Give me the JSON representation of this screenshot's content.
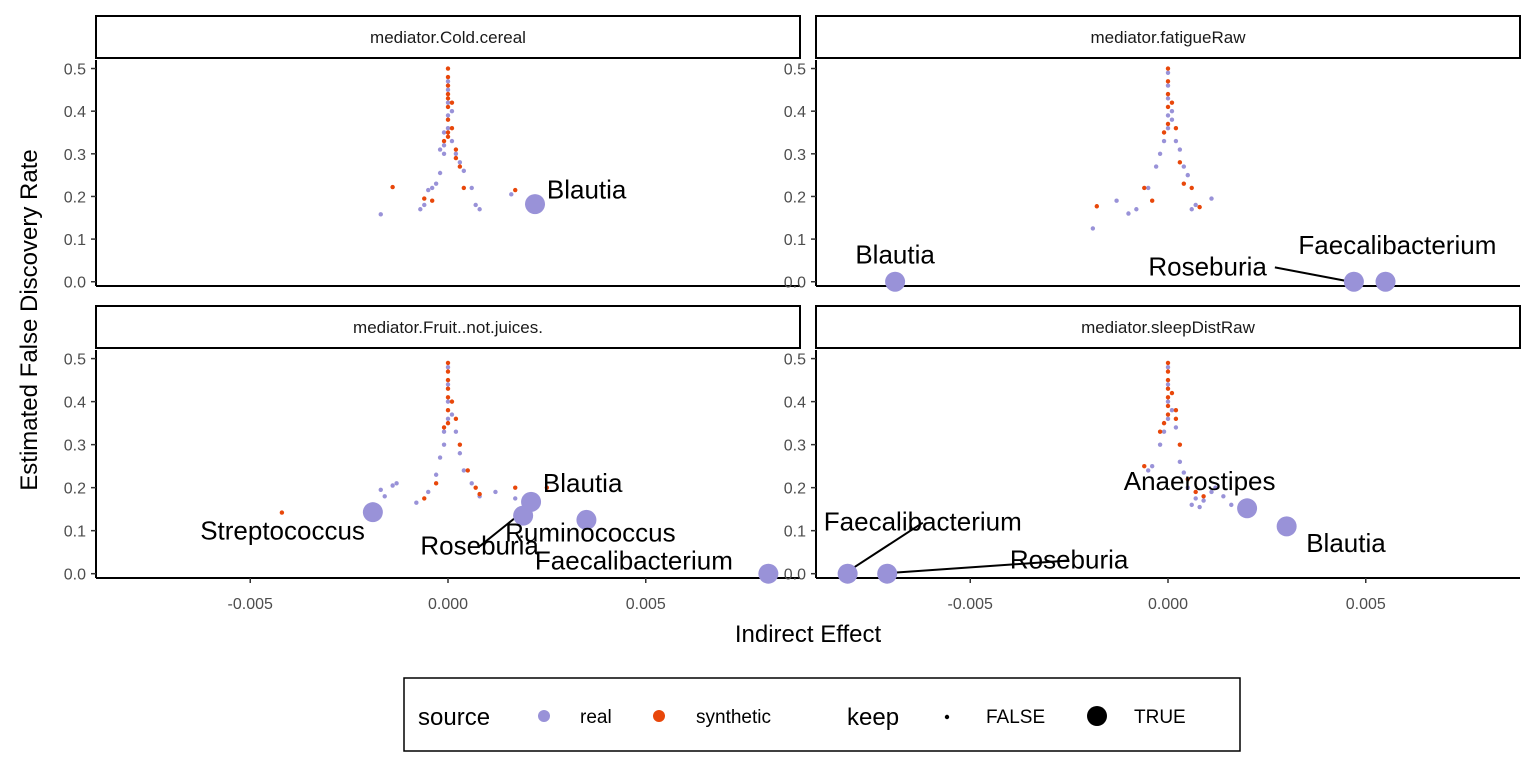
{
  "chart_data": {
    "type": "scatter",
    "xlabel": "Indirect Effect",
    "ylabel": "Estimated False Discovery Rate",
    "xlim": [
      -0.0089,
      0.0089
    ],
    "ylim": [
      -0.01,
      0.52
    ],
    "x_ticks": [
      -0.005,
      0.0,
      0.005
    ],
    "x_tick_labels": [
      "-0.005",
      "0.000",
      "0.005"
    ],
    "y_ticks": [
      0.0,
      0.1,
      0.2,
      0.3,
      0.4,
      0.5
    ],
    "y_tick_labels": [
      "0.0",
      "0.1",
      "0.2",
      "0.3",
      "0.4",
      "0.5"
    ],
    "grid": false,
    "legend_position": "bottom",
    "colors": {
      "real": "#9992D8",
      "synthetic": "#E8470A"
    },
    "legend": {
      "source_title": "source",
      "source_items": [
        "real",
        "synthetic"
      ],
      "keep_title": "keep",
      "keep_items": [
        "FALSE",
        "TRUE"
      ]
    },
    "facets": [
      {
        "title": "mediator.Cold.cereal",
        "real_small": [
          [
            -0.0017,
            0.158
          ],
          [
            -0.0007,
            0.17
          ],
          [
            -0.0006,
            0.18
          ],
          [
            -0.0005,
            0.215
          ],
          [
            -0.0004,
            0.22
          ],
          [
            -0.0003,
            0.23
          ],
          [
            -0.0002,
            0.255
          ],
          [
            -0.0002,
            0.31
          ],
          [
            -0.0001,
            0.3
          ],
          [
            -0.0001,
            0.32
          ],
          [
            -0.0001,
            0.35
          ],
          [
            0.0,
            0.36
          ],
          [
            0.0,
            0.39
          ],
          [
            0.0,
            0.42
          ],
          [
            0.0,
            0.45
          ],
          [
            0.0,
            0.47
          ],
          [
            0.0001,
            0.33
          ],
          [
            0.0001,
            0.4
          ],
          [
            0.0002,
            0.3
          ],
          [
            0.0003,
            0.28
          ],
          [
            0.0004,
            0.26
          ],
          [
            0.0006,
            0.22
          ],
          [
            0.0007,
            0.18
          ],
          [
            0.0008,
            0.17
          ],
          [
            0.0016,
            0.205
          ]
        ],
        "syn_small": [
          [
            -0.0014,
            0.222
          ],
          [
            -0.0006,
            0.195
          ],
          [
            -0.0004,
            0.19
          ],
          [
            -0.0001,
            0.33
          ],
          [
            0.0,
            0.34
          ],
          [
            0.0,
            0.35
          ],
          [
            0.0,
            0.38
          ],
          [
            0.0,
            0.41
          ],
          [
            0.0,
            0.43
          ],
          [
            0.0,
            0.44
          ],
          [
            0.0,
            0.46
          ],
          [
            0.0,
            0.48
          ],
          [
            0.0,
            0.5
          ],
          [
            0.0001,
            0.36
          ],
          [
            0.0001,
            0.42
          ],
          [
            0.0002,
            0.31
          ],
          [
            0.0002,
            0.29
          ],
          [
            0.0003,
            0.27
          ],
          [
            0.0004,
            0.22
          ],
          [
            0.0017,
            0.215
          ]
        ],
        "real_big": [
          [
            0.0022,
            0.182
          ]
        ],
        "syn_big": [],
        "labels": [
          {
            "text": "Blautia",
            "x": 0.0025,
            "y": 0.195,
            "anchor": "start",
            "point": null
          }
        ]
      },
      {
        "title": "mediator.fatigueRaw",
        "real_small": [
          [
            -0.0019,
            0.125
          ],
          [
            -0.0013,
            0.19
          ],
          [
            -0.001,
            0.16
          ],
          [
            -0.0008,
            0.17
          ],
          [
            -0.0005,
            0.22
          ],
          [
            -0.0003,
            0.27
          ],
          [
            -0.0002,
            0.3
          ],
          [
            -0.0001,
            0.33
          ],
          [
            0.0,
            0.36
          ],
          [
            0.0,
            0.39
          ],
          [
            0.0,
            0.43
          ],
          [
            0.0,
            0.46
          ],
          [
            0.0,
            0.49
          ],
          [
            0.0001,
            0.38
          ],
          [
            0.0001,
            0.4
          ],
          [
            0.0002,
            0.33
          ],
          [
            0.0003,
            0.31
          ],
          [
            0.0004,
            0.27
          ],
          [
            0.0005,
            0.25
          ],
          [
            0.0006,
            0.17
          ],
          [
            0.0007,
            0.18
          ],
          [
            0.0011,
            0.195
          ]
        ],
        "syn_small": [
          [
            -0.0018,
            0.177
          ],
          [
            -0.0006,
            0.22
          ],
          [
            -0.0004,
            0.19
          ],
          [
            -0.0001,
            0.35
          ],
          [
            0.0,
            0.37
          ],
          [
            0.0,
            0.41
          ],
          [
            0.0,
            0.44
          ],
          [
            0.0,
            0.47
          ],
          [
            0.0,
            0.5
          ],
          [
            0.0001,
            0.42
          ],
          [
            0.0002,
            0.36
          ],
          [
            0.0003,
            0.28
          ],
          [
            0.0004,
            0.23
          ],
          [
            0.0006,
            0.22
          ],
          [
            0.0008,
            0.175
          ]
        ],
        "real_big": [
          [
            -0.0069,
            0.0
          ],
          [
            0.0047,
            0.0
          ],
          [
            0.0055,
            0.0
          ]
        ],
        "syn_big": [],
        "labels": [
          {
            "text": "Blautia",
            "x": -0.0069,
            "y": 0.043,
            "anchor": "middle",
            "point": null
          },
          {
            "text": "Faecalibacterium",
            "x": 0.0058,
            "y": 0.065,
            "anchor": "middle",
            "point": null
          },
          {
            "text": "Roseburia",
            "x": 0.0025,
            "y": 0.015,
            "anchor": "end",
            "point": [
              0.0045,
              0.002
            ]
          }
        ]
      },
      {
        "title": "mediator.Fruit..not.juices.",
        "real_small": [
          [
            -0.0017,
            0.195
          ],
          [
            -0.0016,
            0.18
          ],
          [
            -0.0014,
            0.205
          ],
          [
            -0.0013,
            0.21
          ],
          [
            -0.0008,
            0.165
          ],
          [
            -0.0005,
            0.19
          ],
          [
            -0.0003,
            0.23
          ],
          [
            -0.0002,
            0.27
          ],
          [
            -0.0001,
            0.3
          ],
          [
            -0.0001,
            0.33
          ],
          [
            0.0,
            0.36
          ],
          [
            0.0,
            0.4
          ],
          [
            0.0,
            0.44
          ],
          [
            0.0,
            0.48
          ],
          [
            0.0001,
            0.37
          ],
          [
            0.0002,
            0.33
          ],
          [
            0.0003,
            0.28
          ],
          [
            0.0004,
            0.24
          ],
          [
            0.0006,
            0.21
          ],
          [
            0.0008,
            0.18
          ],
          [
            0.0012,
            0.19
          ],
          [
            0.0017,
            0.175
          ]
        ],
        "syn_small": [
          [
            -0.0042,
            0.142
          ],
          [
            -0.0006,
            0.175
          ],
          [
            -0.0003,
            0.21
          ],
          [
            -0.0001,
            0.34
          ],
          [
            0.0,
            0.35
          ],
          [
            0.0,
            0.38
          ],
          [
            0.0,
            0.41
          ],
          [
            0.0,
            0.43
          ],
          [
            0.0,
            0.45
          ],
          [
            0.0,
            0.47
          ],
          [
            0.0,
            0.49
          ],
          [
            0.0001,
            0.4
          ],
          [
            0.0002,
            0.36
          ],
          [
            0.0003,
            0.3
          ],
          [
            0.0005,
            0.24
          ],
          [
            0.0007,
            0.2
          ],
          [
            0.0008,
            0.185
          ],
          [
            0.0017,
            0.2
          ],
          [
            0.0025,
            0.2
          ]
        ],
        "real_big": [
          [
            -0.0019,
            0.143
          ],
          [
            0.0019,
            0.135
          ],
          [
            0.0021,
            0.167
          ],
          [
            0.0035,
            0.125
          ],
          [
            0.0081,
            0.0
          ]
        ],
        "syn_big": [],
        "labels": [
          {
            "text": "Blautia",
            "x": 0.0024,
            "y": 0.19,
            "anchor": "start",
            "point": null
          },
          {
            "text": "Streptococcus",
            "x": -0.0021,
            "y": 0.08,
            "anchor": "end",
            "point": null
          },
          {
            "text": "Roseburia",
            "x": 0.0008,
            "y": 0.045,
            "anchor": "middle",
            "point": [
              0.0017,
              0.13
            ]
          },
          {
            "text": "Ruminococcus",
            "x": 0.0036,
            "y": 0.075,
            "anchor": "middle",
            "point": null
          },
          {
            "text": "Faecalibacterium",
            "x": 0.0047,
            "y": 0.01,
            "anchor": "middle",
            "point": null
          }
        ]
      },
      {
        "title": "mediator.sleepDistRaw",
        "real_small": [
          [
            -0.0005,
            0.24
          ],
          [
            -0.0004,
            0.25
          ],
          [
            -0.0002,
            0.3
          ],
          [
            -0.0001,
            0.33
          ],
          [
            0.0,
            0.36
          ],
          [
            0.0,
            0.4
          ],
          [
            0.0,
            0.44
          ],
          [
            0.0,
            0.48
          ],
          [
            0.0001,
            0.38
          ],
          [
            0.0002,
            0.34
          ],
          [
            0.0003,
            0.26
          ],
          [
            0.0004,
            0.235
          ],
          [
            0.0005,
            0.2
          ],
          [
            0.0006,
            0.16
          ],
          [
            0.0007,
            0.175
          ],
          [
            0.0008,
            0.155
          ],
          [
            0.0009,
            0.17
          ],
          [
            0.0011,
            0.19
          ],
          [
            0.0012,
            0.2
          ],
          [
            0.0014,
            0.18
          ],
          [
            0.0016,
            0.16
          ]
        ],
        "syn_small": [
          [
            -0.0006,
            0.25
          ],
          [
            -0.0002,
            0.33
          ],
          [
            -0.0001,
            0.35
          ],
          [
            0.0,
            0.37
          ],
          [
            0.0,
            0.39
          ],
          [
            0.0,
            0.41
          ],
          [
            0.0,
            0.43
          ],
          [
            0.0,
            0.45
          ],
          [
            0.0,
            0.47
          ],
          [
            0.0,
            0.49
          ],
          [
            0.0001,
            0.42
          ],
          [
            0.0002,
            0.38
          ],
          [
            0.0002,
            0.36
          ],
          [
            0.0003,
            0.3
          ],
          [
            0.0005,
            0.22
          ],
          [
            0.0007,
            0.19
          ],
          [
            0.0009,
            0.18
          ]
        ],
        "real_big": [
          [
            -0.0081,
            0.0
          ],
          [
            -0.0071,
            0.0
          ],
          [
            0.002,
            0.152
          ],
          [
            0.003,
            0.11
          ]
        ],
        "syn_big": [],
        "labels": [
          {
            "text": "Anaerostipes",
            "x": 0.0008,
            "y": 0.195,
            "anchor": "middle",
            "point": null
          },
          {
            "text": "Blautia",
            "x": 0.0045,
            "y": 0.05,
            "anchor": "middle",
            "point": null
          },
          {
            "text": "Faecalibacterium",
            "x": -0.0062,
            "y": 0.1,
            "anchor": "middle",
            "point": [
              -0.0081,
              0.005
            ]
          },
          {
            "text": "Roseburia",
            "x": -0.0025,
            "y": 0.012,
            "anchor": "middle",
            "point": [
              -0.007,
              0.002
            ]
          }
        ]
      }
    ]
  }
}
